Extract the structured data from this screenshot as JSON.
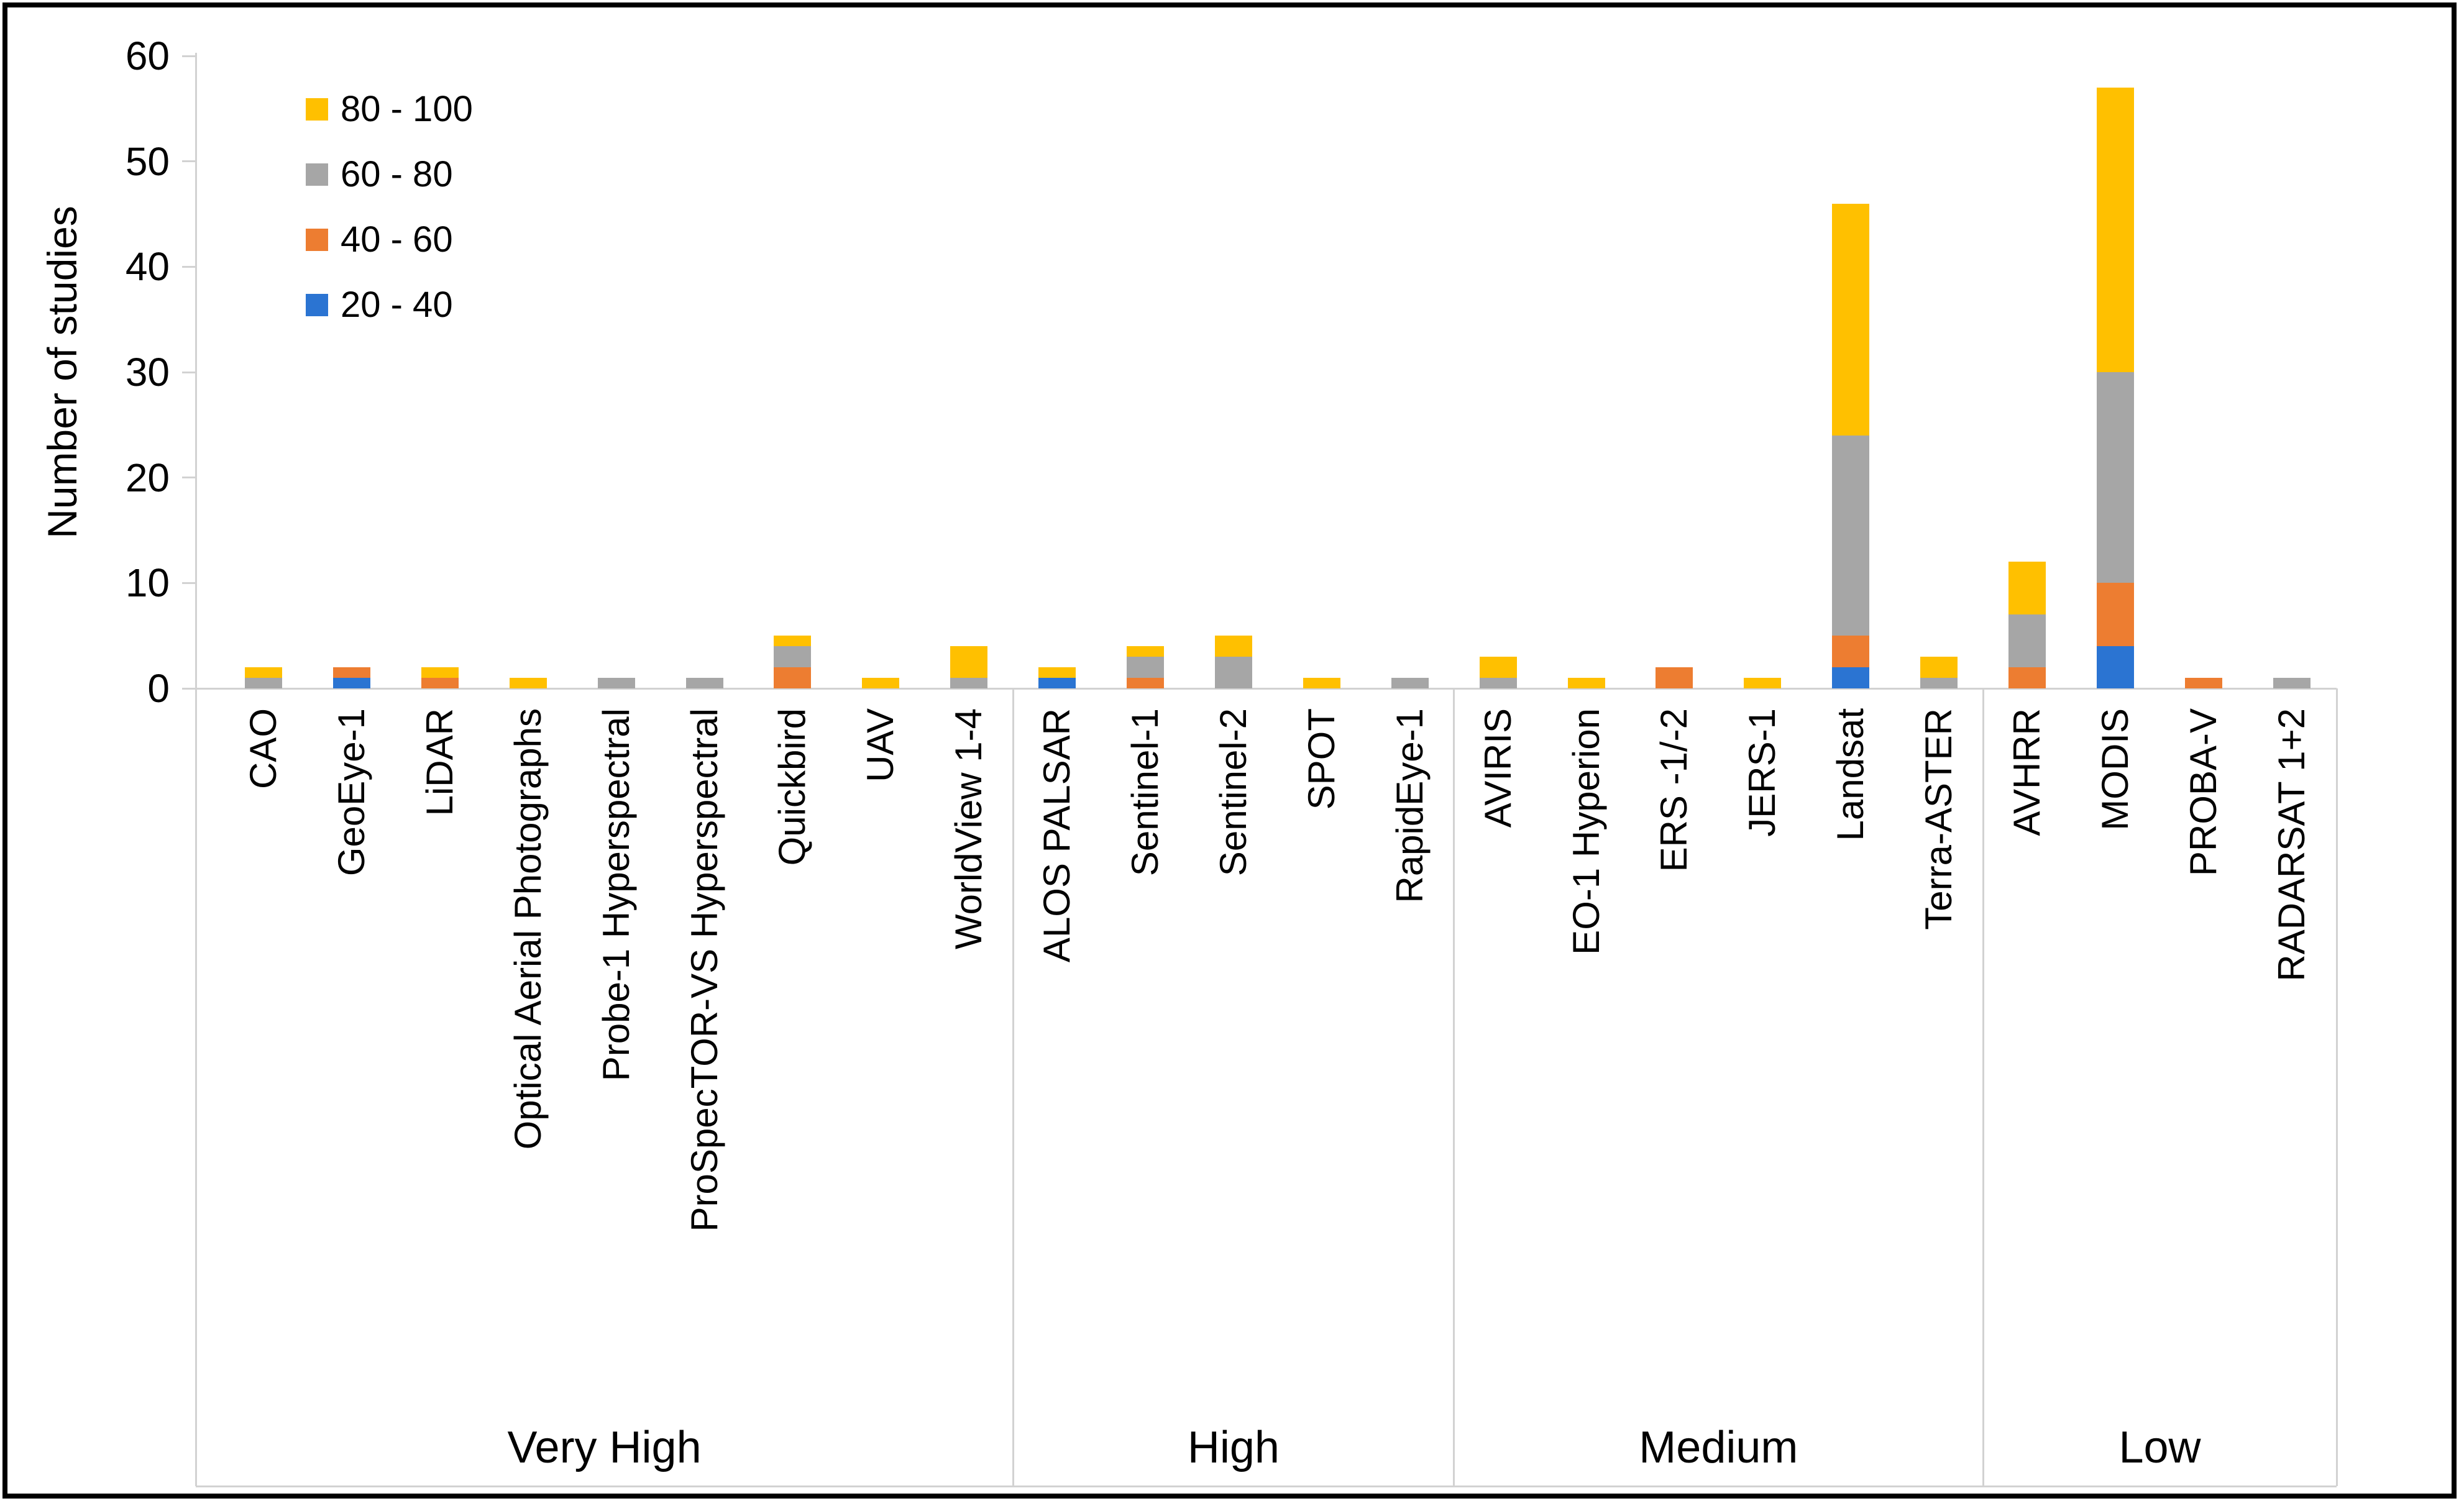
{
  "figure": {
    "background": "#ffffff",
    "border_color": "#000000",
    "axis_line_color": "#d2d2d2",
    "text_color": "#000000"
  },
  "legend": {
    "items": [
      {
        "label": "80 - 100",
        "color": "#FFC000"
      },
      {
        "label": "60 - 80",
        "color": "#A6A6A6"
      },
      {
        "label": "40 - 60",
        "color": "#ED7D31"
      },
      {
        "label": "20 - 40",
        "color": "#2B74D2"
      }
    ]
  },
  "chart_data": {
    "type": "bar",
    "stacked": true,
    "title": "",
    "xlabel": "",
    "ylabel": "Number of studies",
    "ylim": [
      0,
      60
    ],
    "yticks": [
      0,
      10,
      20,
      30,
      40,
      50,
      60
    ],
    "grid": false,
    "legend_position": "upper-left-inside",
    "categories": [
      "CAO",
      "GeoEye-1",
      "LiDAR",
      "Optical Aerial Photographs",
      "Probe-1 Hyperspectral",
      "ProSpecTOR-VS Hyperspectral",
      "Quickbird",
      "UAV",
      "WorldView 1-4",
      "ALOS PALSAR",
      "Sentinel-1",
      "Sentinel-2",
      "SPOT",
      "RapidEye-1",
      "AVIRIS",
      "EO-1 Hyperion",
      "ERS -1/-2",
      "JERS-1",
      "Landsat",
      "Terra-ASTER",
      "AVHRR",
      "MODIS",
      "PROBA-V",
      "RADARSAT 1+2"
    ],
    "groups": [
      {
        "label": "Very High",
        "start": 0,
        "end": 8
      },
      {
        "label": "High",
        "start": 9,
        "end": 13
      },
      {
        "label": "Medium",
        "start": 14,
        "end": 19
      },
      {
        "label": "Low",
        "start": 20,
        "end": 23
      }
    ],
    "series": [
      {
        "name": "20 - 40",
        "color": "#2B74D2",
        "values": [
          0,
          1,
          0,
          0,
          0,
          0,
          0,
          0,
          0,
          1,
          0,
          0,
          0,
          0,
          0,
          0,
          0,
          0,
          2,
          0,
          0,
          4,
          0,
          0
        ]
      },
      {
        "name": "40 - 60",
        "color": "#ED7D31",
        "values": [
          0,
          1,
          1,
          0,
          0,
          0,
          2,
          0,
          0,
          0,
          1,
          0,
          0,
          0,
          0,
          0,
          2,
          0,
          3,
          0,
          2,
          6,
          1,
          0
        ]
      },
      {
        "name": "60 - 80",
        "color": "#A6A6A6",
        "values": [
          1,
          0,
          0,
          0,
          1,
          1,
          2,
          0,
          1,
          0,
          2,
          3,
          0,
          1,
          1,
          0,
          0,
          0,
          19,
          1,
          5,
          20,
          0,
          1
        ]
      },
      {
        "name": "80 - 100",
        "color": "#FFC000",
        "values": [
          1,
          0,
          1,
          1,
          0,
          0,
          1,
          1,
          3,
          1,
          1,
          2,
          1,
          0,
          2,
          1,
          0,
          1,
          22,
          2,
          5,
          27,
          0,
          0
        ]
      }
    ],
    "category_totals": [
      2,
      2,
      2,
      1,
      1,
      1,
      5,
      1,
      4,
      2,
      4,
      5,
      1,
      1,
      3,
      1,
      2,
      1,
      46,
      3,
      12,
      57,
      1,
      1
    ]
  }
}
